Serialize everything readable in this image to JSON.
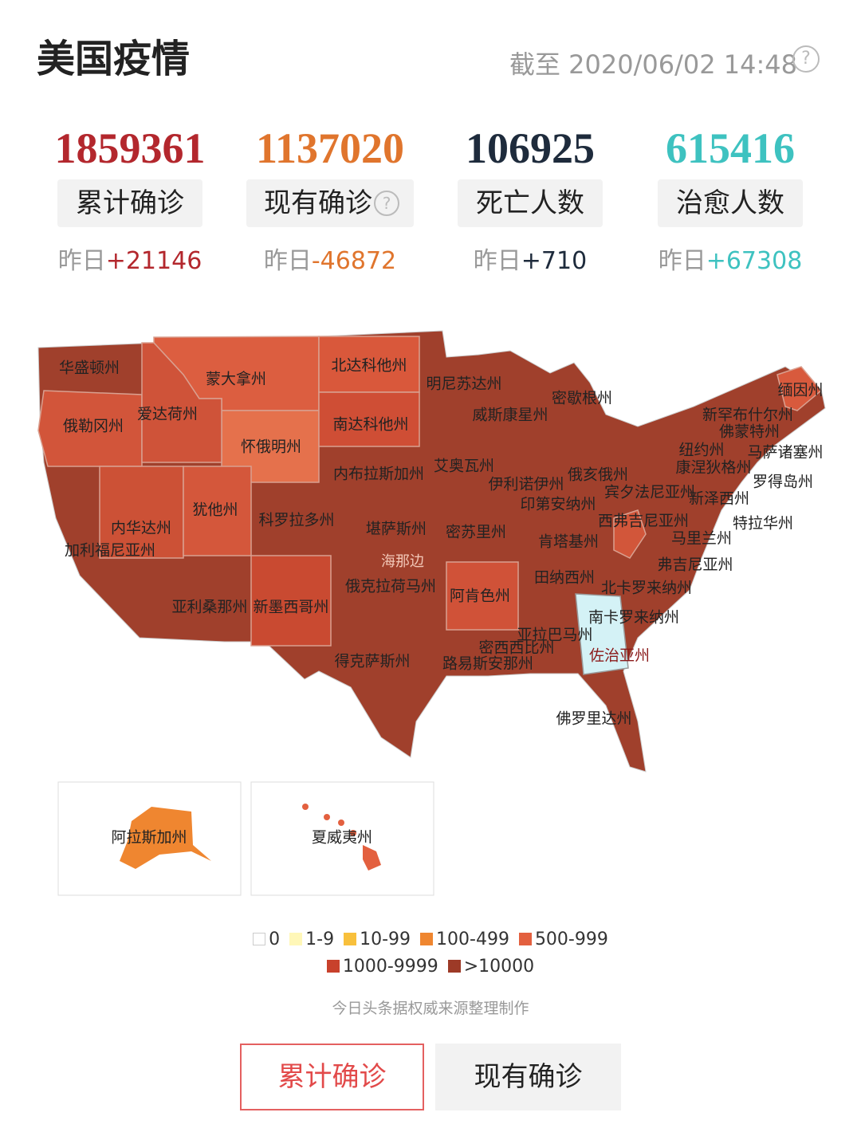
{
  "header": {
    "title": "美国疫情",
    "date": "截至 2020/06/02 14:48"
  },
  "stats": [
    {
      "value": "1859361",
      "label": "累计确诊",
      "delta_prefix": "昨日",
      "delta": "+21146",
      "color": "#b3272d"
    },
    {
      "value": "1137020",
      "label": "现有确诊",
      "delta_prefix": "昨日",
      "delta": "-46872",
      "color": "#e0752d"
    },
    {
      "value": "106925",
      "label": "死亡人数",
      "delta_prefix": "昨日",
      "delta": "+710",
      "color": "#1e2b3c"
    },
    {
      "value": "615416",
      "label": "治愈人数",
      "delta_prefix": "昨日",
      "delta": "+67308",
      "color": "#3ec2c0"
    }
  ],
  "map": {
    "states": [
      "华盛顿州",
      "蒙大拿州",
      "北达科他州",
      "明尼苏达州",
      "密歇根州",
      "缅因州",
      "俄勒冈州",
      "爱达荷州",
      "南达科他州",
      "威斯康星州",
      "新罕布什尔州",
      "佛蒙特州",
      "怀俄明州",
      "纽约州",
      "马萨诸塞州",
      "康涅狄格州",
      "内布拉斯加州",
      "艾奥瓦州",
      "俄亥俄州",
      "伊利诺伊州",
      "宾夕法尼亚州",
      "罗得岛州",
      "新泽西州",
      "印第安纳州",
      "内华达州",
      "犹他州",
      "科罗拉多州",
      "堪萨斯州",
      "密苏里州",
      "西弗吉尼亚州",
      "特拉华州",
      "加利福尼亚州",
      "马里兰州",
      "肯塔基州",
      "弗吉尼亚州",
      "俄克拉荷马州",
      "田纳西州",
      "阿肯色州",
      "北卡罗来纳州",
      "亚利桑那州",
      "新墨西哥州",
      "南卡罗来纳州",
      "亚拉巴马州",
      "密西西比州",
      "佐治亚州",
      "得克萨斯州",
      "路易斯安那州",
      "佛罗里达州"
    ],
    "insets": [
      "阿拉斯加州",
      "夏威夷州"
    ],
    "watermark": "海那边"
  },
  "legend": [
    {
      "label": "0",
      "color": "#ffffff"
    },
    {
      "label": "1-9",
      "color": "#fff7b8"
    },
    {
      "label": "10-99",
      "color": "#f8c03c"
    },
    {
      "label": "100-499",
      "color": "#ef8630"
    },
    {
      "label": "500-999",
      "color": "#e3603f"
    },
    {
      "label": "1000-9999",
      "color": "#c8412c"
    },
    {
      "label": ">10000",
      "color": "#9d3a27"
    }
  ],
  "source": "今日头条据权威来源整理制作",
  "tabs": [
    "累计确诊",
    "现有确诊"
  ]
}
